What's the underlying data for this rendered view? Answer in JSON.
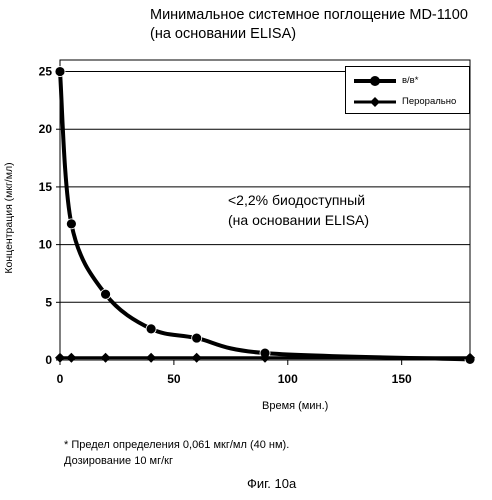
{
  "chart_data": {
    "type": "line",
    "title": "Минимальное системное поглощение MD-1100",
    "subtitle": "(на основании ELISA)",
    "xlabel": "Время (мин.)",
    "ylabel": "Концентрация (мкг/мл)",
    "xlim": [
      0,
      180
    ],
    "ylim": [
      0,
      26
    ],
    "x_ticks": [
      0,
      50,
      100,
      150
    ],
    "y_ticks": [
      0,
      5,
      10,
      15,
      20,
      25
    ],
    "x_tick_labels": [
      "0",
      "50",
      "100",
      "150"
    ],
    "y_tick_labels": [
      "0",
      "5",
      "10",
      "15",
      "20",
      "25"
    ],
    "grid": "horizontal",
    "legend_position": "top-right",
    "series": [
      {
        "name": "в/в*",
        "marker": "circle",
        "x": [
          0,
          5,
          20,
          40,
          60,
          90,
          180
        ],
        "y": [
          25.0,
          11.8,
          5.7,
          2.7,
          1.9,
          0.6,
          0.05
        ]
      },
      {
        "name": "Перорально",
        "marker": "diamond",
        "x": [
          0,
          5,
          20,
          40,
          60,
          90,
          180
        ],
        "y": [
          0.2,
          0.2,
          0.2,
          0.2,
          0.2,
          0.2,
          0.2
        ]
      }
    ],
    "annotation": [
      "<2,2% биодоступный",
      "(на основании ELISA)"
    ]
  },
  "footnote": {
    "line1": "* Предел определения 0,061 мкг/мл (40 нм).",
    "line2": "Дозирование 10 мг/кг"
  },
  "figure_label": "Фиг. 10а"
}
